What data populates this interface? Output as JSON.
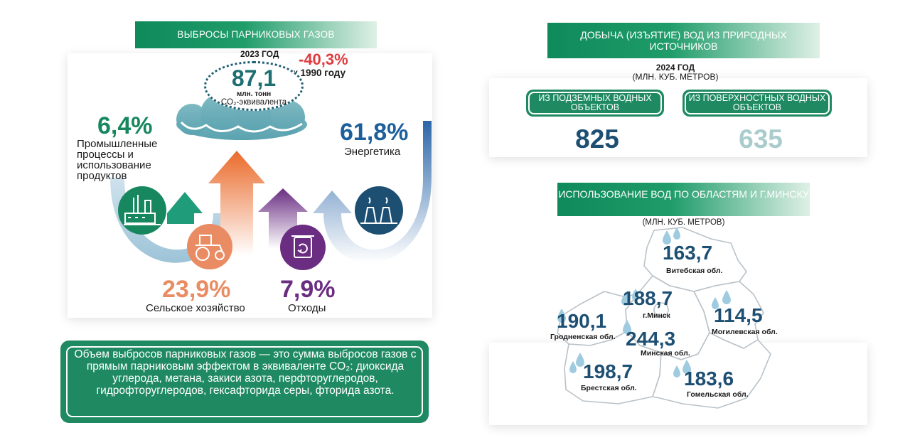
{
  "ghg": {
    "title": "ВЫБРОСЫ ПАРНИКОВЫХ ГАЗОВ",
    "year": "2023 ГОД",
    "change": "-40,3%",
    "change_note": "к 1990 году",
    "total": "87,1",
    "total_unit": "млн. тонн",
    "total_unit2": "CO₂-эквивалента",
    "sectors": {
      "industry": {
        "pct": "6,4%",
        "label": "Промышленные процессы и использование продуктов",
        "icon": "factory-icon",
        "color": "#16875e"
      },
      "energy": {
        "pct": "61,8%",
        "label": "Энергетика",
        "icon": "power-plant-icon",
        "color": "#1c5f9b"
      },
      "agriculture": {
        "pct": "23,9%",
        "label": "Сельское хозяйство",
        "icon": "tractor-icon",
        "color": "#ea8c63"
      },
      "waste": {
        "pct": "7,9%",
        "label": "Отходы",
        "icon": "recycle-bin-icon",
        "color": "#6a2d82"
      }
    },
    "definition": "Объем выбросов парниковых газов — это сумма выбросов газов с прямым парниковым эффектом в эквиваленте CO₂: диоксида углерода, метана, закиси азота, перфторуглеродов, гидрофторуглеродов, гексафторида серы, фторида азота."
  },
  "water_extraction": {
    "title": "ДОБЫЧА (ИЗЪЯТИЕ) ВОД ИЗ ПРИРОДНЫХ ИСТОЧНИКОВ",
    "year": "2024 ГОД",
    "unit": "(МЛН. КУБ. МЕТРОВ)",
    "underground_label": "ИЗ ПОДЗЕМНЫХ ВОДНЫХ ОБЪЕКТОВ",
    "underground_value": "825",
    "surface_label": "ИЗ ПОВЕРХНОСТНЫХ ВОДНЫХ ОБЪЕКТОВ",
    "surface_value": "635"
  },
  "water_use": {
    "title": "ИСПОЛЬЗОВАНИЕ ВОД ПО ОБЛАСТЯМ И Г.МИНСКУ",
    "unit": "(МЛН. КУБ. МЕТРОВ)",
    "regions": {
      "vitebsk": {
        "value": "163,7",
        "name": "Витебская обл."
      },
      "minsk_city": {
        "value": "188,7",
        "name": "г.Минск"
      },
      "grodno": {
        "value": "190,1",
        "name": "Гродненская обл."
      },
      "mogilev": {
        "value": "114,5",
        "name": "Могилевская обл."
      },
      "minsk_region": {
        "value": "244,3",
        "name": "Минская обл."
      },
      "brest": {
        "value": "198,7",
        "name": "Брестская обл."
      },
      "gomel": {
        "value": "183,6",
        "name": "Гомельская обл."
      }
    }
  },
  "colors": {
    "green": "#1f8a62",
    "navy": "#1d4f73",
    "red": "#e03a3e",
    "pale_teal": "#aacccc"
  }
}
